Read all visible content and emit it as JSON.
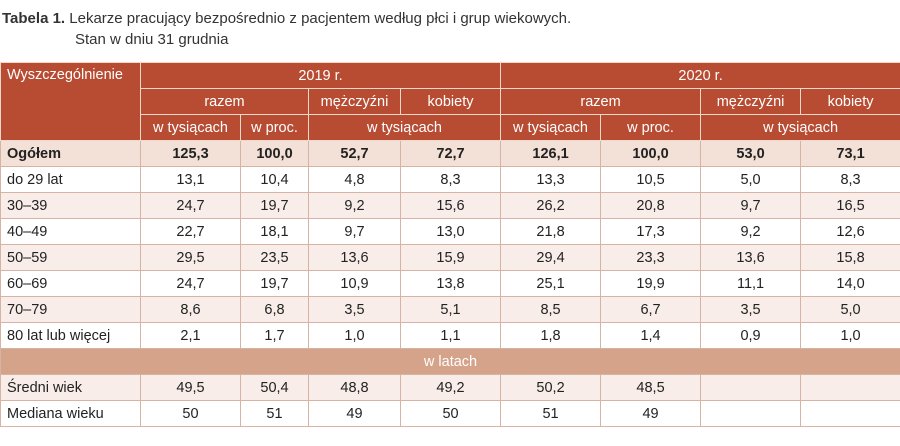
{
  "title": {
    "label": "Tabela 1.",
    "text": "Lekarze pracujący bezpośrednio z pacjentem według płci i grup wiekowych.",
    "subtitle": "Stan w dniu 31 grudnia"
  },
  "table": {
    "header": {
      "stub": "Wyszczególnienie",
      "years": [
        "2019 r.",
        "2020 r."
      ],
      "groups": [
        "razem",
        "mężczyźni",
        "kobiety",
        "razem",
        "mężczyźni",
        "kobiety"
      ],
      "units": [
        "w tysiącach",
        "w proc.",
        "w tysiącach",
        "w tysiącach",
        "w proc.",
        "w tysiącach"
      ]
    },
    "rows": [
      {
        "label": "Ogółem",
        "values": [
          "125,3",
          "100,0",
          "52,7",
          "72,7",
          "126,1",
          "100,0",
          "53,0",
          "73,1"
        ]
      },
      {
        "label": "do 29 lat",
        "values": [
          "13,1",
          "10,4",
          "4,8",
          "8,3",
          "13,3",
          "10,5",
          "5,0",
          "8,3"
        ]
      },
      {
        "label": "30–39",
        "values": [
          "24,7",
          "19,7",
          "9,2",
          "15,6",
          "26,2",
          "20,8",
          "9,7",
          "16,5"
        ]
      },
      {
        "label": "40–49",
        "values": [
          "22,7",
          "18,1",
          "9,7",
          "13,0",
          "21,8",
          "17,3",
          "9,2",
          "12,6"
        ]
      },
      {
        "label": "50–59",
        "values": [
          "29,5",
          "23,5",
          "13,6",
          "15,9",
          "29,4",
          "23,3",
          "13,6",
          "15,8"
        ]
      },
      {
        "label": "60–69",
        "values": [
          "24,7",
          "19,7",
          "10,9",
          "13,8",
          "25,1",
          "19,9",
          "11,1",
          "14,0"
        ]
      },
      {
        "label": "70–79",
        "values": [
          "8,6",
          "6,8",
          "3,5",
          "5,1",
          "8,5",
          "6,7",
          "3,5",
          "5,0"
        ]
      },
      {
        "label": "80 lat lub więcej",
        "values": [
          "2,1",
          "1,7",
          "1,0",
          "1,1",
          "1,8",
          "1,4",
          "0,9",
          "1,0"
        ]
      }
    ],
    "section": "w latach",
    "rows2": [
      {
        "label": "Średni wiek",
        "values": [
          "49,5",
          "50,4",
          "48,8",
          "49,2",
          "50,2",
          "48,5"
        ]
      },
      {
        "label": "Mediana wieku",
        "values": [
          "50",
          "51",
          "49",
          "50",
          "51",
          "49"
        ]
      }
    ]
  }
}
